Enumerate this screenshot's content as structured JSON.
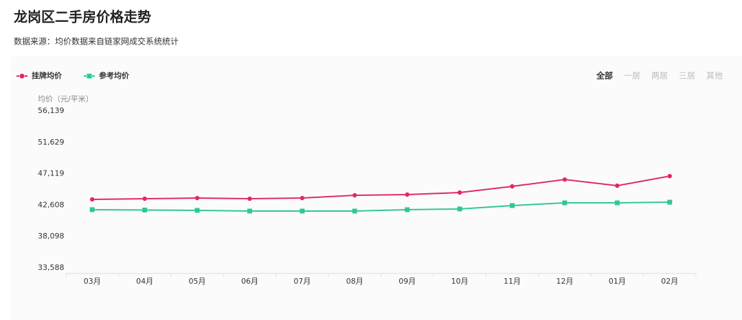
{
  "chart_data": {
    "type": "line",
    "title": "龙岗区二手房价格走势",
    "subtitle": "数据来源：均价数据来自链家网成交系统统计",
    "y_label": "均价（元/平米）",
    "categories": [
      "03月",
      "04月",
      "05月",
      "06月",
      "07月",
      "08月",
      "09月",
      "10月",
      "11月",
      "12月",
      "01月",
      "02月"
    ],
    "series": [
      {
        "name": "挂牌均价",
        "color": "#e0276a",
        "marker": "circle",
        "values": [
          43440,
          43530,
          43630,
          43530,
          43630,
          44030,
          44130,
          44420,
          45310,
          46290,
          45410,
          46780
        ]
      },
      {
        "name": "参考均价",
        "color": "#2ec98f",
        "marker": "square",
        "values": [
          41960,
          41910,
          41860,
          41760,
          41760,
          41760,
          41960,
          42060,
          42550,
          42940,
          42940,
          43040
        ]
      }
    ],
    "ylim": [
      33588,
      56139
    ],
    "yticks": [
      {
        "value": 33588,
        "label": "33,588"
      },
      {
        "value": 38098,
        "label": "38,098"
      },
      {
        "value": 42608,
        "label": "42,608"
      },
      {
        "value": 47119,
        "label": "47,119"
      },
      {
        "value": 51629,
        "label": "51,629"
      },
      {
        "value": 56139,
        "label": "56,139"
      }
    ],
    "grid": false,
    "legend": "top-left"
  },
  "tabs": [
    "全部",
    "一居",
    "两居",
    "三居",
    "其他"
  ]
}
